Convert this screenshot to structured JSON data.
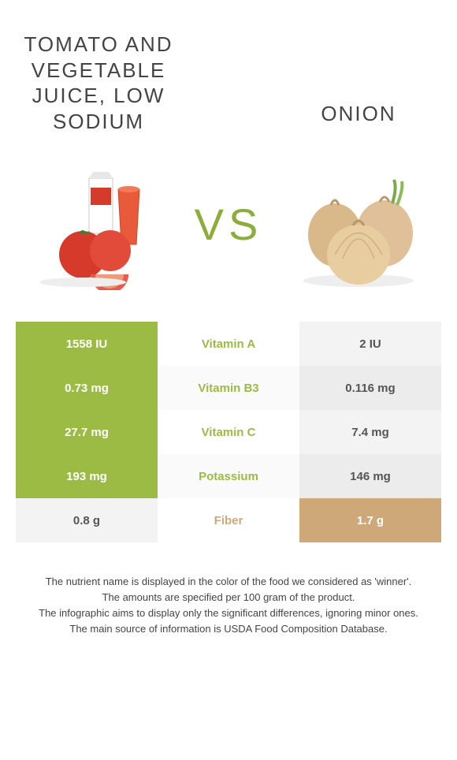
{
  "product_a": {
    "title": "Tomato and vegetable juice, low sodium",
    "win_color": "#9bbb45"
  },
  "product_b": {
    "title": "Onion",
    "win_color": "#cfa87a"
  },
  "vs_label": "VS",
  "table": {
    "lose_bg": "#f3f3f3",
    "lose_bg_alt": "#ececec",
    "rows": [
      {
        "nutrient": "Vitamin A",
        "a_value": "1558 IU",
        "b_value": "2 IU",
        "winner": "a"
      },
      {
        "nutrient": "Vitamin B3",
        "a_value": "0.73 mg",
        "b_value": "0.116 mg",
        "winner": "a"
      },
      {
        "nutrient": "Vitamin C",
        "a_value": "27.7 mg",
        "b_value": "7.4 mg",
        "winner": "a"
      },
      {
        "nutrient": "Potassium",
        "a_value": "193 mg",
        "b_value": "146 mg",
        "winner": "a"
      },
      {
        "nutrient": "Fiber",
        "a_value": "0.8 g",
        "b_value": "1.7 g",
        "winner": "b"
      }
    ]
  },
  "footer": {
    "line1": "The nutrient name is displayed in the color of the food we considered as 'winner'.",
    "line2": "The amounts are specified per 100 gram of the product.",
    "line3": "The infographic aims to display only the significant differences, ignoring minor ones.",
    "line4": "The main source of information is USDA Food Composition Database."
  }
}
